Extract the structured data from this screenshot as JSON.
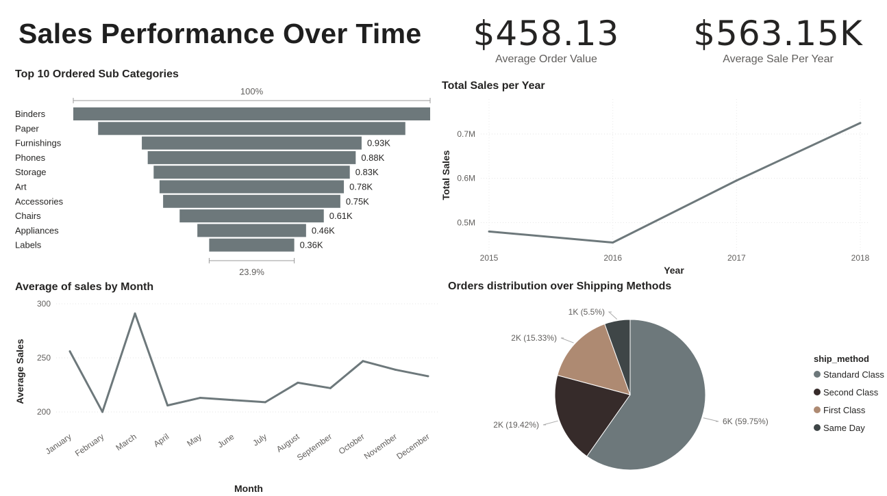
{
  "title": "Sales Performance Over Time",
  "kpis": [
    {
      "value": "$458.13",
      "label": "Average Order Value"
    },
    {
      "value": "$563.15K",
      "label": "Average Sale Per Year"
    }
  ],
  "chart_data": [
    {
      "type": "bar",
      "subtype": "funnel",
      "title": "Top 10 Ordered Sub Categories",
      "top_label": "100%",
      "bottom_label": "23.9%",
      "categories": [
        "Binders",
        "Paper",
        "Furnishings",
        "Phones",
        "Storage",
        "Art",
        "Accessories",
        "Chairs",
        "Appliances",
        "Labels"
      ],
      "values": [
        1.51,
        1.3,
        0.93,
        0.88,
        0.83,
        0.78,
        0.75,
        0.61,
        0.46,
        0.36
      ],
      "data_labels": [
        "",
        "",
        "0.93K",
        "0.88K",
        "0.83K",
        "0.78K",
        "0.75K",
        "0.61K",
        "0.46K",
        "0.36K"
      ],
      "color": "#6d787b"
    },
    {
      "type": "line",
      "title": "Total Sales per Year",
      "xlabel": "Year",
      "ylabel": "Total Sales",
      "x": [
        "2015",
        "2016",
        "2017",
        "2018"
      ],
      "values": [
        0.48,
        0.455,
        0.595,
        0.725
      ],
      "yticks": [
        "0.5M",
        "0.6M",
        "0.7M"
      ],
      "ytick_values": [
        0.5,
        0.6,
        0.7
      ],
      "ylim": [
        0.445,
        0.74
      ],
      "color": "#6d787b"
    },
    {
      "type": "line",
      "title": "Average of sales by Month",
      "xlabel": "Month",
      "ylabel": "Average Sales",
      "x": [
        "January",
        "February",
        "March",
        "April",
        "May",
        "June",
        "July",
        "August",
        "September",
        "October",
        "November",
        "December"
      ],
      "values": [
        256,
        200,
        291,
        206,
        213,
        211,
        209,
        227,
        222,
        247,
        239,
        233
      ],
      "yticks": [
        "200",
        "250",
        "300"
      ],
      "ytick_values": [
        200,
        250,
        300
      ],
      "ylim": [
        195,
        300
      ],
      "color": "#6d787b"
    },
    {
      "type": "pie",
      "title": "Orders distribution over Shipping Methods",
      "legend_title": "ship_method",
      "legend": "right",
      "slices": [
        {
          "name": "Standard Class",
          "value": 59.75,
          "label": "6K (59.75%)",
          "color": "#6d787b"
        },
        {
          "name": "Second Class",
          "value": 19.42,
          "label": "2K (19.42%)",
          "color": "#362b2a"
        },
        {
          "name": "First Class",
          "value": 15.33,
          "label": "2K (15.33%)",
          "color": "#ae8a72"
        },
        {
          "name": "Same Day",
          "value": 5.5,
          "label": "1K (5.5%)",
          "color": "#3f4647"
        }
      ]
    }
  ]
}
